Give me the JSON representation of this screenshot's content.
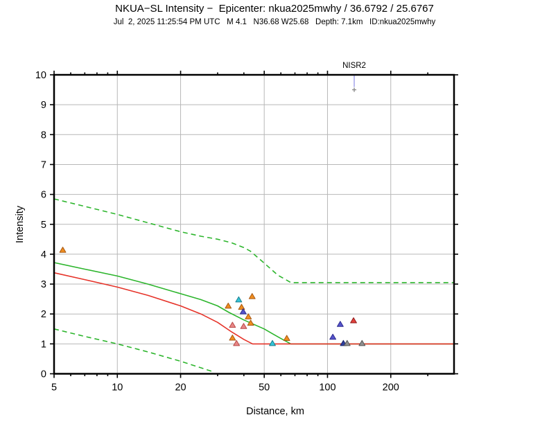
{
  "header": {
    "title": "NKUA−SL Intensity −  Epicenter: nkua2025mwhy / 36.6792 / 25.6767",
    "subtitle": "Jul  2, 2025 11:25:54 PM UTC   M 4.1   N36.68 W25.68   Depth: 7.1km   ID:nkua2025mwhy"
  },
  "colors": {
    "green": "#2cb52c",
    "red_line": "#e63329",
    "grid": "#b7b7b7",
    "frame": "#000000",
    "station_annotation": "#7575e2",
    "marker_cross": "#8a8a8a"
  },
  "chart_data": {
    "type": "scatter",
    "title": "NKUA−SL Intensity − Epicenter: nkua2025mwhy / 36.6792 / 25.6767",
    "xlabel": "Distance, km",
    "ylabel": "Intensity",
    "x_scale": "log",
    "xlim": [
      5,
      400
    ],
    "ylim": [
      0,
      10
    ],
    "grid": true,
    "x_ticks_major": [
      5,
      10,
      20,
      50,
      100,
      200
    ],
    "x_ticks_minor": [
      6,
      7,
      8,
      9,
      30,
      40,
      60,
      70,
      80,
      90,
      300
    ],
    "y_ticks": [
      0,
      1,
      2,
      3,
      4,
      5,
      6,
      7,
      8,
      9,
      10
    ],
    "grid_x": [
      10,
      20,
      50,
      100,
      200
    ],
    "grid_y": [
      1,
      2,
      3,
      4,
      5,
      6,
      7,
      8,
      9
    ],
    "series": [
      {
        "name": "mean-intensity-curve",
        "style": "solid",
        "color_key": "green",
        "points": [
          [
            5,
            3.72
          ],
          [
            7,
            3.5
          ],
          [
            10,
            3.27
          ],
          [
            14,
            3.0
          ],
          [
            20,
            2.68
          ],
          [
            25,
            2.48
          ],
          [
            30,
            2.27
          ],
          [
            34,
            2.05
          ],
          [
            40,
            1.8
          ],
          [
            45,
            1.64
          ],
          [
            50,
            1.5
          ],
          [
            55,
            1.33
          ],
          [
            60,
            1.18
          ],
          [
            67,
            1.0
          ],
          [
            400,
            1.0
          ]
        ]
      },
      {
        "name": "alternate-mean-curve",
        "style": "solid",
        "color_key": "red_line",
        "points": [
          [
            5,
            3.38
          ],
          [
            7,
            3.15
          ],
          [
            10,
            2.9
          ],
          [
            14,
            2.62
          ],
          [
            20,
            2.27
          ],
          [
            25,
            2.0
          ],
          [
            30,
            1.72
          ],
          [
            35,
            1.4
          ],
          [
            40,
            1.15
          ],
          [
            44,
            1.0
          ],
          [
            400,
            1.0
          ]
        ]
      },
      {
        "name": "upper-bound-curve",
        "style": "dashed",
        "color_key": "green",
        "points": [
          [
            5,
            5.85
          ],
          [
            7,
            5.6
          ],
          [
            10,
            5.33
          ],
          [
            14,
            5.05
          ],
          [
            20,
            4.75
          ],
          [
            25,
            4.6
          ],
          [
            30,
            4.5
          ],
          [
            35,
            4.38
          ],
          [
            40,
            4.22
          ],
          [
            43,
            4.1
          ],
          [
            50,
            3.7
          ],
          [
            58,
            3.3
          ],
          [
            67,
            3.05
          ],
          [
            400,
            3.05
          ]
        ]
      },
      {
        "name": "lower-bound-curve",
        "style": "dashed",
        "color_key": "green",
        "points": [
          [
            5,
            1.5
          ],
          [
            7,
            1.25
          ],
          [
            10,
            1.0
          ],
          [
            14,
            0.73
          ],
          [
            20,
            0.42
          ],
          [
            25,
            0.2
          ],
          [
            29,
            0.05
          ]
        ]
      }
    ],
    "point_styles": {
      "orange": {
        "fill": "#ef8d1f",
        "stroke": "#a85a14"
      },
      "cyan": {
        "fill": "#35c4d7",
        "stroke": "#1a7f8e"
      },
      "salmon": {
        "fill": "#e78686",
        "stroke": "#b94a48"
      },
      "purple": {
        "fill": "#5553cb",
        "stroke": "#2e2c8f"
      },
      "navy": {
        "fill": "#2e3f9f",
        "stroke": "#1a2466"
      },
      "gray": {
        "fill": "#8f8f8f",
        "stroke": "#555555"
      },
      "red": {
        "fill": "#e2413b",
        "stroke": "#8f1d1d"
      }
    },
    "points": [
      {
        "d": 5.5,
        "intensity": 4.13,
        "style": "orange"
      },
      {
        "d": 33.7,
        "intensity": 2.26,
        "style": "orange"
      },
      {
        "d": 37.8,
        "intensity": 2.47,
        "style": "cyan"
      },
      {
        "d": 43.8,
        "intensity": 2.58,
        "style": "orange"
      },
      {
        "d": 39.0,
        "intensity": 2.22,
        "style": "orange"
      },
      {
        "d": 39.7,
        "intensity": 2.07,
        "style": "purple"
      },
      {
        "d": 42.0,
        "intensity": 1.9,
        "style": "orange"
      },
      {
        "d": 35.3,
        "intensity": 1.62,
        "style": "salmon"
      },
      {
        "d": 39.9,
        "intensity": 1.58,
        "style": "salmon"
      },
      {
        "d": 43.1,
        "intensity": 1.69,
        "style": "orange"
      },
      {
        "d": 35.3,
        "intensity": 1.19,
        "style": "orange"
      },
      {
        "d": 36.9,
        "intensity": 1.01,
        "style": "salmon"
      },
      {
        "d": 64.0,
        "intensity": 1.18,
        "style": "orange"
      },
      {
        "d": 54.7,
        "intensity": 1.01,
        "style": "cyan"
      },
      {
        "d": 133,
        "intensity": 1.77,
        "style": "red"
      },
      {
        "d": 115,
        "intensity": 1.65,
        "style": "purple"
      },
      {
        "d": 106,
        "intensity": 1.22,
        "style": "purple"
      },
      {
        "d": 119,
        "intensity": 1.01,
        "style": "navy"
      },
      {
        "d": 124,
        "intensity": 1.01,
        "style": "gray"
      },
      {
        "d": 146,
        "intensity": 1.01,
        "style": "gray"
      }
    ],
    "station_annotation": {
      "label": "NISR2",
      "distance_km": 134,
      "marker_intensity": 9.5
    },
    "legend": null
  }
}
